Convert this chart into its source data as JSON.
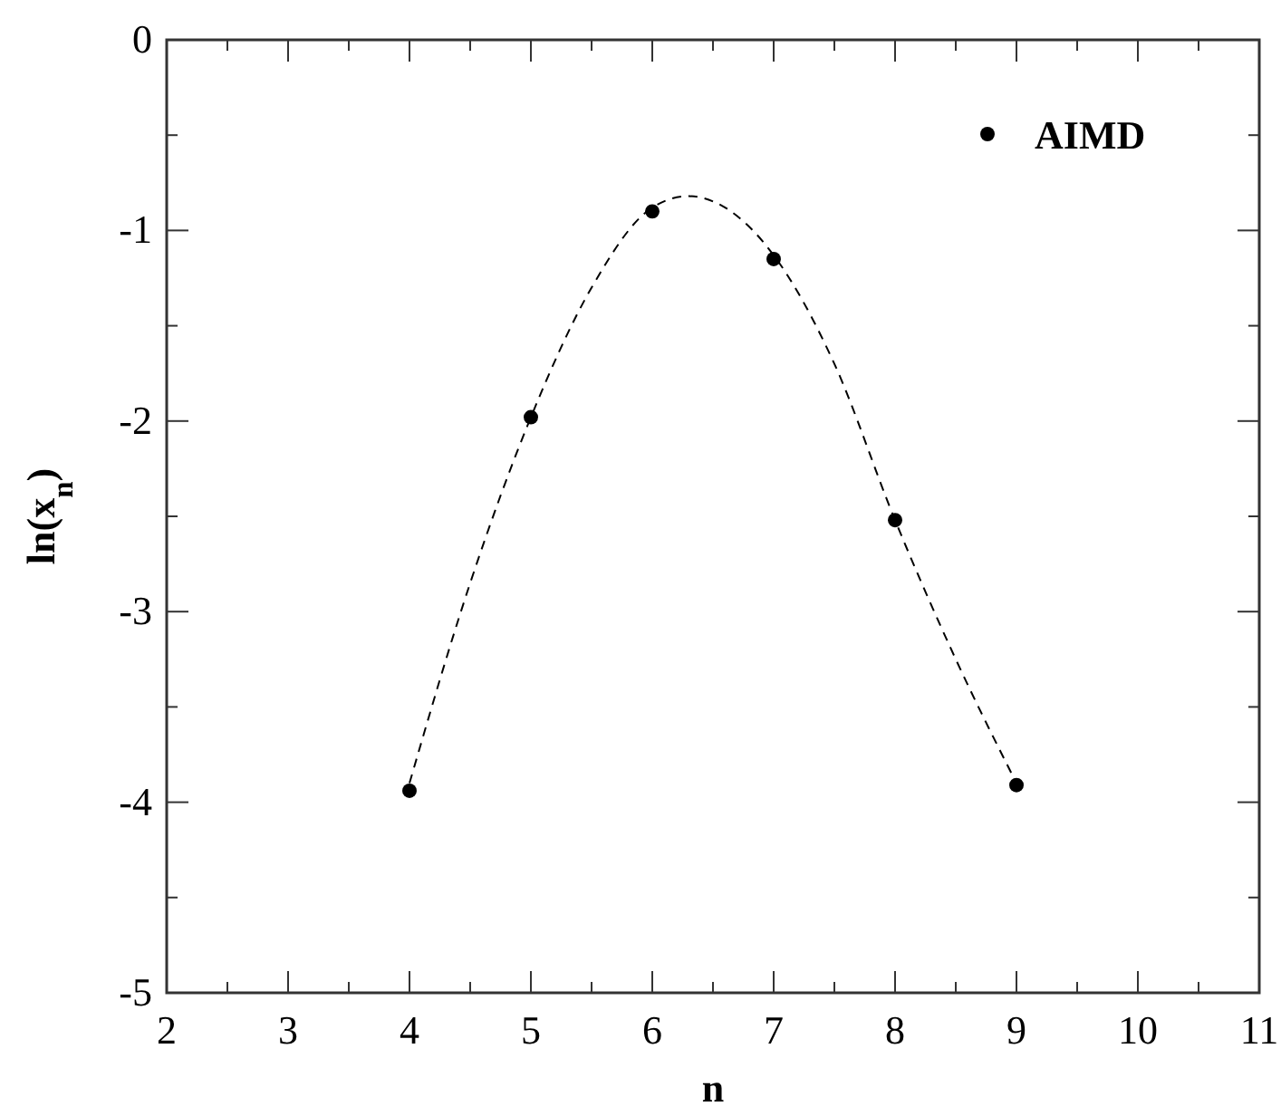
{
  "chart_data": {
    "type": "scatter",
    "xlabel": "n",
    "ylabel": "ln(x$_{n}$)",
    "xlim": [
      2,
      11
    ],
    "ylim": [
      -5,
      0
    ],
    "xticks": [
      2,
      {
        "value": 2.5,
        "label": null
      },
      3,
      {
        "value": 3.5,
        "label": null
      },
      4,
      {
        "value": 4.5,
        "label": null
      },
      5,
      {
        "value": 5.5,
        "label": null
      },
      6,
      {
        "value": 6.5,
        "label": null
      },
      7,
      {
        "value": 7.5,
        "label": null
      },
      8,
      {
        "value": 8.5,
        "label": null
      },
      9,
      {
        "value": 9.5,
        "label": null
      },
      10,
      {
        "value": 10.5,
        "label": null
      },
      11
    ],
    "yticks": [
      -5,
      {
        "value": -4.5,
        "label": null
      },
      -4,
      {
        "value": -3.5,
        "label": null
      },
      -3,
      {
        "value": -2.5,
        "label": null
      },
      -2,
      {
        "value": -1.5,
        "label": null
      },
      -1,
      {
        "value": -0.5,
        "label": null
      },
      0
    ],
    "grid": false,
    "legend": "top right",
    "series": [
      {
        "type": "line",
        "line_style": "dashed",
        "marker": "none",
        "color": "#000000",
        "x": [
          4,
          4.5,
          5,
          5.5,
          6,
          6.3,
          6.6,
          7,
          7.5,
          8,
          8.5,
          9
        ],
        "values": [
          -3.9,
          -2.85,
          -1.98,
          -1.3,
          -0.88,
          -0.82,
          -0.88,
          -1.13,
          -1.7,
          -2.52,
          -3.25,
          -3.9
        ]
      },
      {
        "name": "AIMD",
        "marker": "circle",
        "color": "#000000",
        "x": [
          4,
          5,
          6,
          7,
          8,
          9
        ],
        "values": [
          -3.94,
          -1.98,
          -0.9,
          -1.15,
          -2.52,
          -3.91
        ]
      }
    ]
  }
}
